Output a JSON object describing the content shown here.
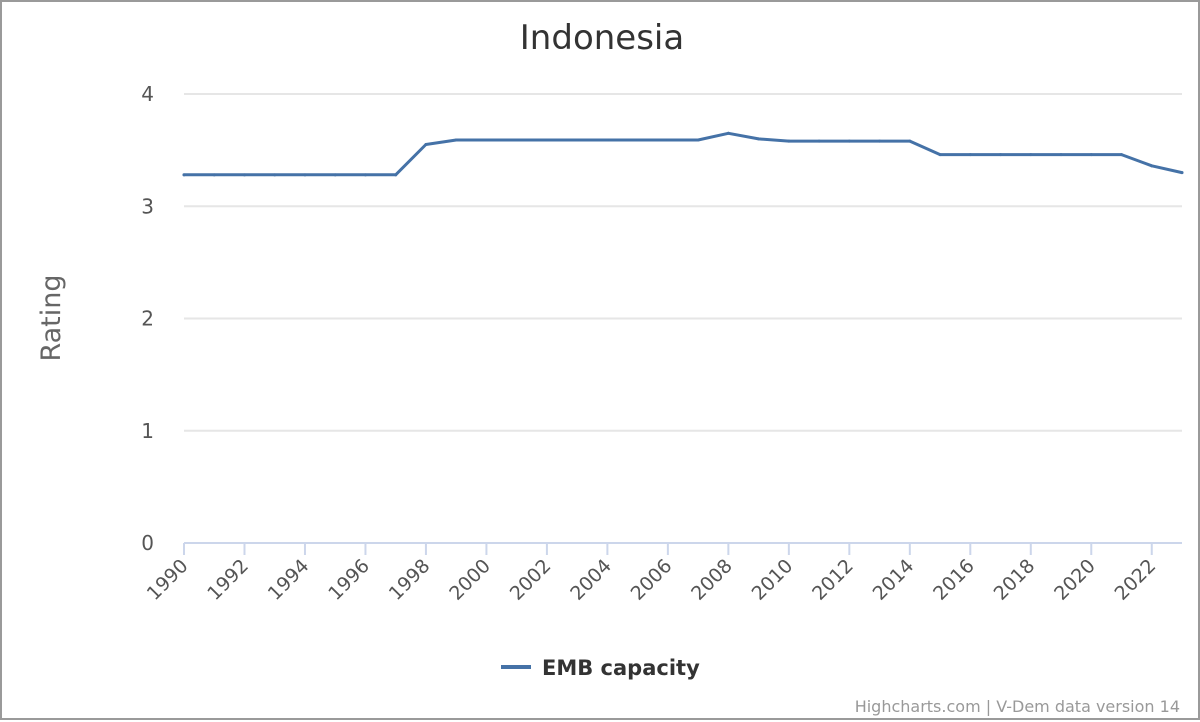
{
  "chart_data": {
    "type": "line",
    "title": "Indonesia",
    "xlabel": "",
    "ylabel": "Rating",
    "ylim": [
      0,
      4
    ],
    "xlim": [
      1990,
      2023
    ],
    "yticks": [
      "0",
      "1",
      "2",
      "3",
      "4"
    ],
    "xticks": [
      "1990",
      "1992",
      "1994",
      "1996",
      "1998",
      "2000",
      "2002",
      "2004",
      "2006",
      "2008",
      "2010",
      "2012",
      "2014",
      "2016",
      "2018",
      "2020",
      "2022"
    ],
    "grid": true,
    "legend_position": "bottom-center",
    "series": [
      {
        "name": "EMB capacity",
        "color": "#4572a7",
        "x": [
          1990,
          1991,
          1992,
          1993,
          1994,
          1995,
          1996,
          1997,
          1998,
          1999,
          2000,
          2001,
          2002,
          2003,
          2004,
          2005,
          2006,
          2007,
          2008,
          2009,
          2010,
          2011,
          2012,
          2013,
          2014,
          2015,
          2016,
          2017,
          2018,
          2019,
          2020,
          2021,
          2022,
          2023
        ],
        "values": [
          3.28,
          3.28,
          3.28,
          3.28,
          3.28,
          3.28,
          3.28,
          3.28,
          3.55,
          3.59,
          3.59,
          3.59,
          3.59,
          3.59,
          3.59,
          3.59,
          3.59,
          3.59,
          3.65,
          3.6,
          3.58,
          3.58,
          3.58,
          3.58,
          3.58,
          3.46,
          3.46,
          3.46,
          3.46,
          3.46,
          3.46,
          3.46,
          3.36,
          3.3
        ]
      }
    ]
  },
  "credits": "Highcharts.com | V-Dem data version 14"
}
